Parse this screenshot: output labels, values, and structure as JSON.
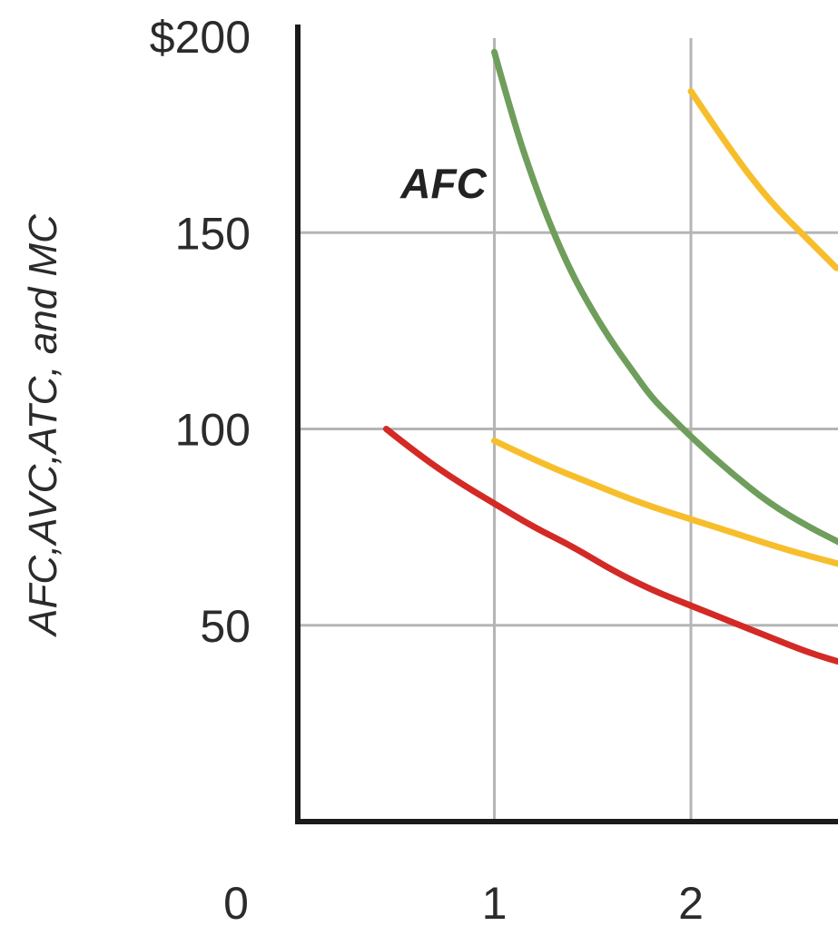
{
  "chart_data": {
    "type": "line",
    "ylabel": "AFC,AVC,ATC, and MC",
    "xlabel": "",
    "xlim": [
      0,
      2.8
    ],
    "ylim": [
      0,
      200
    ],
    "x_ticks": [
      "0",
      "1",
      "2"
    ],
    "y_ticks": [
      "$200",
      "150",
      "100",
      "50"
    ],
    "y_tick_values": [
      200,
      150,
      100,
      50
    ],
    "x_tick_values": [
      0,
      1,
      2
    ],
    "grid": true,
    "colors": {
      "green": "#6f9e5c",
      "yellow": "#f7be2c",
      "red": "#d32a26",
      "axis": "#1a1a1a",
      "grid": "#b5b5b5"
    },
    "annotations": [
      {
        "text": "AFC",
        "x": 0.96,
        "y": 163,
        "series": "AFC"
      }
    ],
    "series": [
      {
        "name": "AFC",
        "color": "#6f9e5c",
        "points": [
          [
            1.0,
            196
          ],
          [
            1.1,
            178
          ],
          [
            1.2,
            163
          ],
          [
            1.3,
            150
          ],
          [
            1.4,
            139
          ],
          [
            1.5,
            130
          ],
          [
            1.6,
            122
          ],
          [
            1.7,
            115
          ],
          [
            1.8,
            108
          ],
          [
            1.9,
            103
          ],
          [
            2.0,
            98
          ],
          [
            2.2,
            89
          ],
          [
            2.4,
            81
          ],
          [
            2.6,
            75
          ],
          [
            2.8,
            70
          ]
        ]
      },
      {
        "color": "#f7be2c",
        "points": [
          [
            2.0,
            186
          ],
          [
            2.2,
            171
          ],
          [
            2.4,
            158
          ],
          [
            2.6,
            148
          ],
          [
            2.74,
            141
          ]
        ]
      },
      {
        "color": "#f7be2c",
        "points": [
          [
            1.0,
            97
          ],
          [
            1.25,
            91
          ],
          [
            1.5,
            86
          ],
          [
            1.75,
            81
          ],
          [
            2.0,
            77
          ],
          [
            2.25,
            73
          ],
          [
            2.5,
            69
          ],
          [
            2.8,
            65
          ]
        ]
      },
      {
        "color": "#d32a26",
        "points": [
          [
            0.45,
            100
          ],
          [
            0.6,
            94
          ],
          [
            0.8,
            87
          ],
          [
            1.0,
            81
          ],
          [
            1.2,
            75
          ],
          [
            1.4,
            70
          ],
          [
            1.6,
            64
          ],
          [
            1.8,
            59
          ],
          [
            2.0,
            55
          ],
          [
            2.2,
            51
          ],
          [
            2.4,
            47
          ],
          [
            2.6,
            43
          ],
          [
            2.8,
            40
          ]
        ]
      }
    ]
  }
}
